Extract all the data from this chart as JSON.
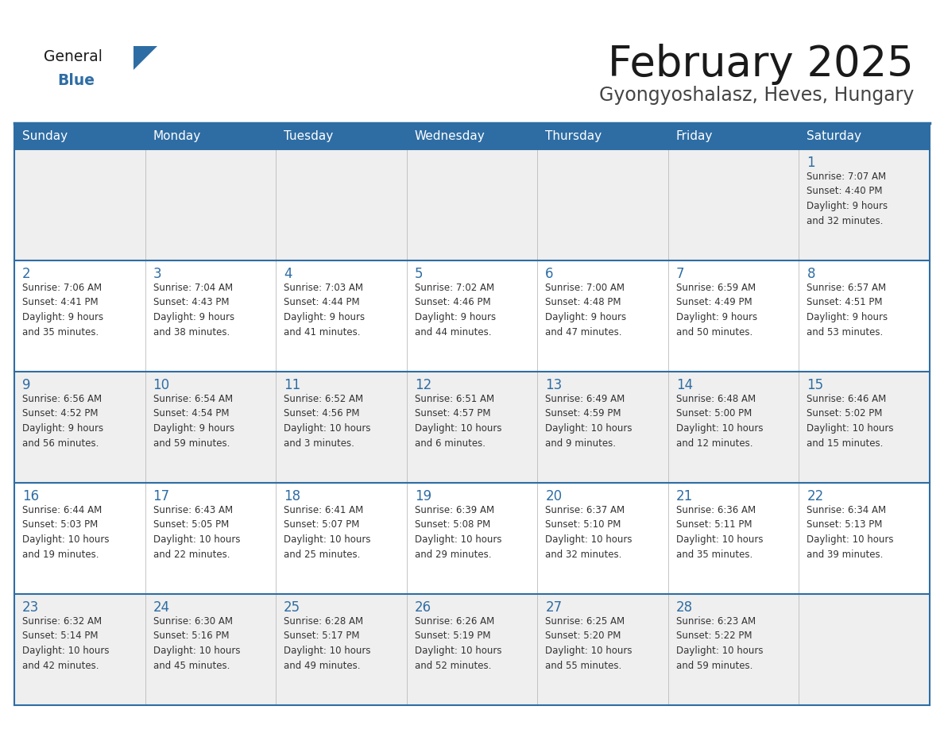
{
  "title": "February 2025",
  "subtitle": "Gyongyoshalasz, Heves, Hungary",
  "header_bg": "#2E6DA4",
  "header_text_color": "#FFFFFF",
  "cell_bg_light": "#EFEFEF",
  "cell_bg_white": "#FFFFFF",
  "border_color": "#2E6DA4",
  "day_names": [
    "Sunday",
    "Monday",
    "Tuesday",
    "Wednesday",
    "Thursday",
    "Friday",
    "Saturday"
  ],
  "title_color": "#1a1a1a",
  "subtitle_color": "#444444",
  "day_number_color": "#2E6DA4",
  "text_color": "#333333",
  "logo_general_color": "#1a1a1a",
  "logo_blue_color": "#2E6DA4",
  "calendar": [
    [
      {
        "day": 0,
        "info": ""
      },
      {
        "day": 0,
        "info": ""
      },
      {
        "day": 0,
        "info": ""
      },
      {
        "day": 0,
        "info": ""
      },
      {
        "day": 0,
        "info": ""
      },
      {
        "day": 0,
        "info": ""
      },
      {
        "day": 1,
        "info": "Sunrise: 7:07 AM\nSunset: 4:40 PM\nDaylight: 9 hours\nand 32 minutes."
      }
    ],
    [
      {
        "day": 2,
        "info": "Sunrise: 7:06 AM\nSunset: 4:41 PM\nDaylight: 9 hours\nand 35 minutes."
      },
      {
        "day": 3,
        "info": "Sunrise: 7:04 AM\nSunset: 4:43 PM\nDaylight: 9 hours\nand 38 minutes."
      },
      {
        "day": 4,
        "info": "Sunrise: 7:03 AM\nSunset: 4:44 PM\nDaylight: 9 hours\nand 41 minutes."
      },
      {
        "day": 5,
        "info": "Sunrise: 7:02 AM\nSunset: 4:46 PM\nDaylight: 9 hours\nand 44 minutes."
      },
      {
        "day": 6,
        "info": "Sunrise: 7:00 AM\nSunset: 4:48 PM\nDaylight: 9 hours\nand 47 minutes."
      },
      {
        "day": 7,
        "info": "Sunrise: 6:59 AM\nSunset: 4:49 PM\nDaylight: 9 hours\nand 50 minutes."
      },
      {
        "day": 8,
        "info": "Sunrise: 6:57 AM\nSunset: 4:51 PM\nDaylight: 9 hours\nand 53 minutes."
      }
    ],
    [
      {
        "day": 9,
        "info": "Sunrise: 6:56 AM\nSunset: 4:52 PM\nDaylight: 9 hours\nand 56 minutes."
      },
      {
        "day": 10,
        "info": "Sunrise: 6:54 AM\nSunset: 4:54 PM\nDaylight: 9 hours\nand 59 minutes."
      },
      {
        "day": 11,
        "info": "Sunrise: 6:52 AM\nSunset: 4:56 PM\nDaylight: 10 hours\nand 3 minutes."
      },
      {
        "day": 12,
        "info": "Sunrise: 6:51 AM\nSunset: 4:57 PM\nDaylight: 10 hours\nand 6 minutes."
      },
      {
        "day": 13,
        "info": "Sunrise: 6:49 AM\nSunset: 4:59 PM\nDaylight: 10 hours\nand 9 minutes."
      },
      {
        "day": 14,
        "info": "Sunrise: 6:48 AM\nSunset: 5:00 PM\nDaylight: 10 hours\nand 12 minutes."
      },
      {
        "day": 15,
        "info": "Sunrise: 6:46 AM\nSunset: 5:02 PM\nDaylight: 10 hours\nand 15 minutes."
      }
    ],
    [
      {
        "day": 16,
        "info": "Sunrise: 6:44 AM\nSunset: 5:03 PM\nDaylight: 10 hours\nand 19 minutes."
      },
      {
        "day": 17,
        "info": "Sunrise: 6:43 AM\nSunset: 5:05 PM\nDaylight: 10 hours\nand 22 minutes."
      },
      {
        "day": 18,
        "info": "Sunrise: 6:41 AM\nSunset: 5:07 PM\nDaylight: 10 hours\nand 25 minutes."
      },
      {
        "day": 19,
        "info": "Sunrise: 6:39 AM\nSunset: 5:08 PM\nDaylight: 10 hours\nand 29 minutes."
      },
      {
        "day": 20,
        "info": "Sunrise: 6:37 AM\nSunset: 5:10 PM\nDaylight: 10 hours\nand 32 minutes."
      },
      {
        "day": 21,
        "info": "Sunrise: 6:36 AM\nSunset: 5:11 PM\nDaylight: 10 hours\nand 35 minutes."
      },
      {
        "day": 22,
        "info": "Sunrise: 6:34 AM\nSunset: 5:13 PM\nDaylight: 10 hours\nand 39 minutes."
      }
    ],
    [
      {
        "day": 23,
        "info": "Sunrise: 6:32 AM\nSunset: 5:14 PM\nDaylight: 10 hours\nand 42 minutes."
      },
      {
        "day": 24,
        "info": "Sunrise: 6:30 AM\nSunset: 5:16 PM\nDaylight: 10 hours\nand 45 minutes."
      },
      {
        "day": 25,
        "info": "Sunrise: 6:28 AM\nSunset: 5:17 PM\nDaylight: 10 hours\nand 49 minutes."
      },
      {
        "day": 26,
        "info": "Sunrise: 6:26 AM\nSunset: 5:19 PM\nDaylight: 10 hours\nand 52 minutes."
      },
      {
        "day": 27,
        "info": "Sunrise: 6:25 AM\nSunset: 5:20 PM\nDaylight: 10 hours\nand 55 minutes."
      },
      {
        "day": 28,
        "info": "Sunrise: 6:23 AM\nSunset: 5:22 PM\nDaylight: 10 hours\nand 59 minutes."
      },
      {
        "day": 0,
        "info": ""
      }
    ]
  ]
}
